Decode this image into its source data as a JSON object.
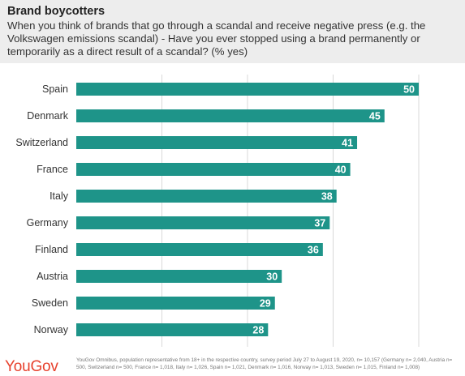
{
  "header": {
    "title": "Brand boycotters",
    "subtitle": "When you think of brands that go through a scandal and receive negative press (e.g. the Volkswagen emissions scandal) - Have you ever stopped using a brand permanently or temporarily as a direct result of a scandal? (% yes)"
  },
  "chart_data": {
    "type": "bar",
    "orientation": "horizontal",
    "categories": [
      "Spain",
      "Denmark",
      "Switzerland",
      "France",
      "Italy",
      "Germany",
      "Finland",
      "Austria",
      "Sweden",
      "Norway"
    ],
    "values": [
      50,
      45,
      41,
      40,
      38,
      37,
      36,
      30,
      29,
      28
    ],
    "xlim": [
      0,
      50
    ],
    "grid": true,
    "bar_color": "#1e9489",
    "data_labels": true
  },
  "footer": {
    "logo": "YouGov",
    "source": "YouGov Omnibus, population representative from 18+ in the respective country, survey period July 27 to August 19, 2020, n= 10,157 (Germany n= 2,040, Austria n= 500, Switzerland n= 500, France n= 1,018, Italy n= 1,026, Spain n= 1,021, Denmark n= 1,016, Norway n= 1,013, Sweden n= 1,015, Finland n= 1,008)"
  },
  "colors": {
    "logo": "#e7412d",
    "header_bg": "#ededed",
    "gridline": "#d9d9d9"
  }
}
